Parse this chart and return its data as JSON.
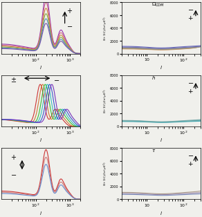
{
  "fig_bg": "#f0f0ec",
  "panel_bg": "#f0f0ec",
  "ylim_left": [
    0,
    6500
  ],
  "ylim_right": [
    0,
    8000
  ],
  "xlim_left": [
    10,
    2000
  ],
  "xlim_right": [
    2,
    300
  ],
  "colors_top": [
    "#9932aa",
    "#cc6688",
    "#cc8844",
    "#88aa44",
    "#5588bb",
    "#7755aa"
  ],
  "colors_mid": [
    "#cc3333",
    "#cc7733",
    "#33bb33",
    "#33bbbb",
    "#3355cc",
    "#7733bb"
  ],
  "colors_bot": [
    "#cc3333",
    "#cc7777",
    "#6688cc"
  ],
  "colors_r_top": [
    "#cc8855",
    "#bb9966",
    "#999977",
    "#888899",
    "#7777aa",
    "#6666bb"
  ],
  "colors_r_mid": [
    "#44aabb",
    "#55aaaa",
    "#66aaaa",
    "#77aaaa"
  ],
  "colors_r_bot": [
    "#aa9988",
    "#9988aa",
    "#7788bb"
  ],
  "lw": 0.8
}
